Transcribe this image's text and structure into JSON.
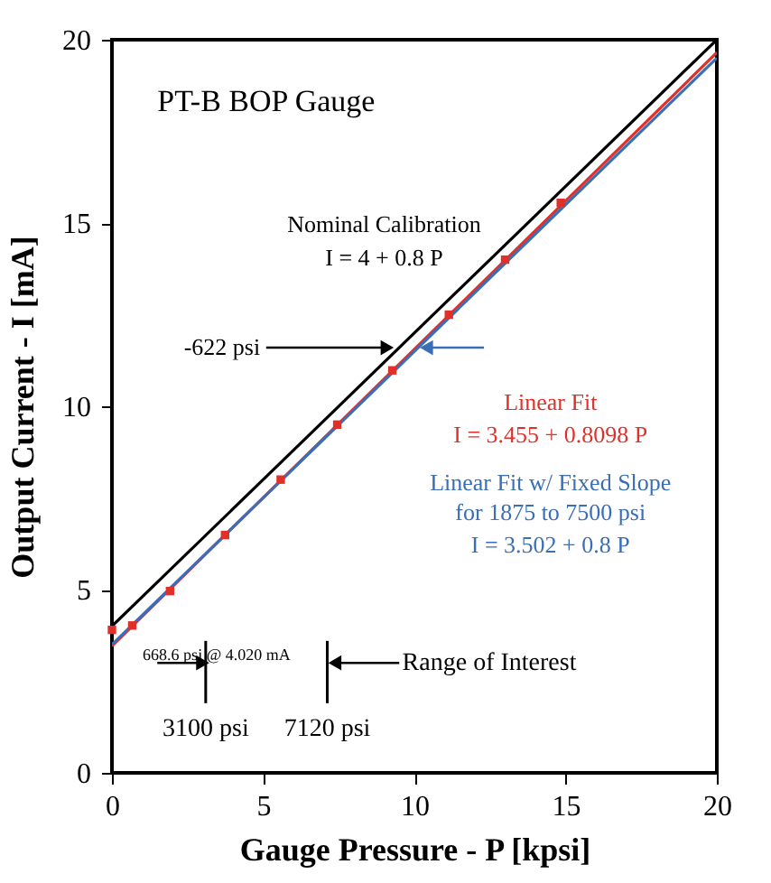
{
  "chart_data": {
    "type": "line",
    "title": "PT-B BOP Gauge",
    "xlabel": "Gauge Pressure - P  [kpsi]",
    "ylabel": "Output Current - I  [mA]",
    "xlim": [
      0,
      20
    ],
    "xticks": [
      0,
      5,
      10,
      15,
      20
    ],
    "ylim": [
      0,
      20
    ],
    "yticks": [
      0,
      5,
      10,
      15,
      20
    ],
    "series": [
      {
        "name": "Nominal Calibration",
        "color": "#000000",
        "x": [
          0,
          20
        ],
        "values": [
          4,
          20
        ]
      },
      {
        "name": "Linear Fit",
        "color": "#e0302a",
        "x": [
          0,
          20
        ],
        "values": [
          3.46,
          19.65
        ]
      },
      {
        "name": "Linear Fit w/ Fixed Slope for 1875 to 7500 psi",
        "color": "#3a6fb8",
        "x": [
          0,
          20
        ],
        "values": [
          3.5,
          19.5
        ]
      },
      {
        "type": "scatter",
        "color": "#e0302a",
        "marker": "square",
        "x": [
          0,
          0.67,
          1.92,
          3.74,
          5.58,
          7.45,
          9.27,
          11.14,
          13.0,
          14.84
        ],
        "values": [
          3.9,
          4.02,
          4.96,
          6.49,
          8.0,
          9.5,
          10.98,
          12.5,
          14.0,
          15.55
        ]
      }
    ],
    "ref_lines": [
      {
        "axis": "x",
        "value": 3.1,
        "label": "3100 psi",
        "color": "#000000"
      },
      {
        "axis": "x",
        "value": 7.12,
        "label": "7120 psi",
        "color": "#000000"
      }
    ],
    "annotations": [
      "I = 4 + 0.8 P",
      "I = 3.455 + 0.8098 P",
      "I = 3.502 + 0.8 P",
      {
        "text": "-622 psi",
        "x": 9.1,
        "y": 11.6
      },
      {
        "text": "668.6 psi @ 4.020 mA",
        "x": 0.6686,
        "y": 4.02
      },
      "Range of Interest"
    ]
  }
}
